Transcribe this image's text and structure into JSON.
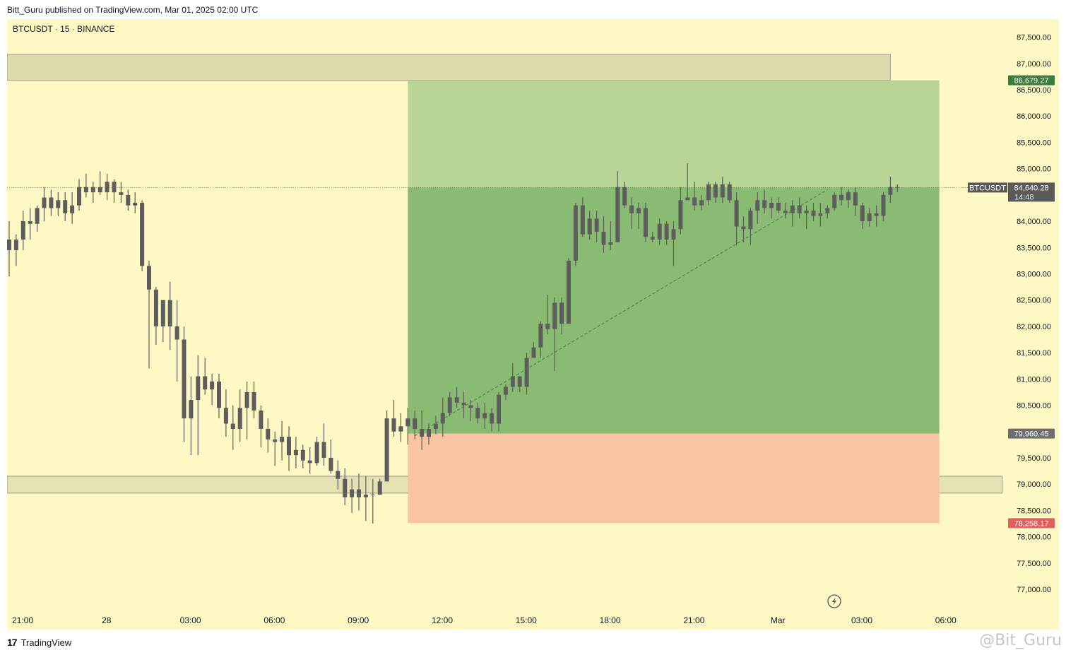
{
  "header": {
    "published_text": "Bitt_Guru published on TradingView.com, Mar 01, 2025 02:00 UTC"
  },
  "footer": {
    "brand_mark": "17",
    "brand_text": "TradingView",
    "watermark_text": "@Bit_Guru"
  },
  "colors": {
    "background": "#fef8c4",
    "candle": "#5d5d5d",
    "profit_zone": "#8abb72",
    "profit_zone_upper": "#b9d596",
    "loss_zone": "#f8c4a1",
    "supply_zone": "#ded9ad",
    "target_label": "#3a7d3c",
    "stop_label": "#e06060",
    "entry_label": "#6e6e6e",
    "current_label": "#5a5a5a"
  },
  "chart_data": {
    "type": "candlestick",
    "symbol_label": "BTCUSDT · 15 · BINANCE",
    "y_axis": {
      "ylim": [
        76700,
        88000
      ],
      "ticks": [
        87500,
        87000,
        86500,
        86000,
        85500,
        85000,
        84500,
        84000,
        83500,
        83000,
        82500,
        82000,
        81500,
        81000,
        80500,
        80000,
        79500,
        79000,
        78500,
        78000,
        77500,
        77000
      ],
      "tick_labels": [
        "87,500.00",
        "87,000.00",
        "86,500.00",
        "86,000.00",
        "85,500.00",
        "85,000.00",
        "84,500.00",
        "84,000.00",
        "83,500.00",
        "83,000.00",
        "82,500.00",
        "82,000.00",
        "81,500.00",
        "81,000.00",
        "80,500.00",
        "80,000.00",
        "79,500.00",
        "79,000.00",
        "78,500.00",
        "78,000.00",
        "77,500.00",
        "77,000.00"
      ]
    },
    "x_axis": {
      "tick_labels": [
        "21:00",
        "28",
        "03:00",
        "06:00",
        "09:00",
        "12:00",
        "15:00",
        "18:00",
        "21:00",
        "Mar",
        "03:00",
        "06:00"
      ],
      "tick_bars": [
        0,
        12,
        24,
        36,
        48,
        60,
        72,
        84,
        96,
        108,
        120,
        132
      ]
    },
    "position": {
      "entry_price": 79960.45,
      "target_price": 86679.27,
      "stop_price": 78258.17,
      "start_bar": 57,
      "end_bar": 133,
      "entry_label": "79,960.45",
      "target_label": "86,679.27",
      "stop_label": "78,258.17"
    },
    "current_price": {
      "symbol": "BTCUSDT",
      "value": 84640.28,
      "value_label": "84,640.28",
      "countdown": "14:48"
    },
    "zones": [
      {
        "name": "supply",
        "low": 86680,
        "high": 87170,
        "end_bar": 126
      },
      {
        "name": "demand",
        "low": 78830,
        "high": 79150,
        "end_bar": 142
      }
    ],
    "trendline": {
      "from": [
        58,
        79920
      ],
      "to": [
        117,
        84600
      ]
    },
    "candles": [
      [
        83650,
        84000,
        82950,
        83450
      ],
      [
        83450,
        83750,
        83150,
        83650
      ],
      [
        83650,
        84200,
        83450,
        84000
      ],
      [
        84000,
        84250,
        83650,
        83950
      ],
      [
        83950,
        84300,
        83800,
        84250
      ],
      [
        84250,
        84650,
        84000,
        84450
      ],
      [
        84450,
        84600,
        84100,
        84250
      ],
      [
        84250,
        84550,
        84100,
        84400
      ],
      [
        84400,
        84550,
        84000,
        84150
      ],
      [
        84150,
        84550,
        83950,
        84300
      ],
      [
        84300,
        84800,
        84200,
        84650
      ],
      [
        84650,
        84900,
        84450,
        84550
      ],
      [
        84550,
        84750,
        84350,
        84650
      ],
      [
        84650,
        84950,
        84500,
        84550
      ],
      [
        84550,
        84900,
        84400,
        84750
      ],
      [
        84750,
        84800,
        84350,
        84550
      ],
      [
        84550,
        84750,
        84350,
        84500
      ],
      [
        84500,
        84600,
        84200,
        84300
      ],
      [
        84300,
        84550,
        84150,
        84350
      ],
      [
        84350,
        84400,
        83050,
        83150
      ],
      [
        83150,
        83250,
        81200,
        82700
      ],
      [
        82700,
        82750,
        81650,
        82000
      ],
      [
        82000,
        82400,
        81700,
        82500
      ],
      [
        82500,
        82850,
        81550,
        82000
      ],
      [
        82000,
        82500,
        80950,
        81750
      ],
      [
        81750,
        82000,
        79800,
        80250
      ],
      [
        80250,
        81050,
        79550,
        80600
      ],
      [
        80600,
        81450,
        79550,
        81050
      ],
      [
        81050,
        81400,
        80700,
        80800
      ],
      [
        80800,
        81100,
        80500,
        80950
      ],
      [
        80950,
        81100,
        80250,
        80450
      ],
      [
        80450,
        80800,
        79900,
        80150
      ],
      [
        80150,
        80500,
        79650,
        80050
      ],
      [
        80050,
        80800,
        79800,
        80450
      ],
      [
        80450,
        80950,
        79850,
        80750
      ],
      [
        80750,
        80950,
        80250,
        80400
      ],
      [
        80400,
        80500,
        79700,
        80050
      ],
      [
        80050,
        80250,
        79600,
        79850
      ],
      [
        79850,
        80000,
        79350,
        79800
      ],
      [
        79800,
        80200,
        79450,
        79900
      ],
      [
        79900,
        80100,
        79250,
        79550
      ],
      [
        79550,
        79900,
        79300,
        79650
      ],
      [
        79650,
        79750,
        79300,
        79450
      ],
      [
        79450,
        79700,
        79200,
        79400
      ],
      [
        79400,
        79900,
        79350,
        79800
      ],
      [
        79800,
        80150,
        79350,
        79500
      ],
      [
        79500,
        79850,
        79200,
        79250
      ],
      [
        79250,
        79450,
        78900,
        79100
      ],
      [
        79100,
        79300,
        78600,
        78750
      ],
      [
        78750,
        79100,
        78450,
        78900
      ],
      [
        78900,
        79200,
        78500,
        78750
      ],
      [
        78750,
        79150,
        78300,
        78800
      ],
      [
        78800,
        79100,
        78250,
        78800
      ],
      [
        78800,
        79100,
        78900,
        79050
      ],
      [
        79050,
        80400,
        79100,
        80250
      ],
      [
        80250,
        80600,
        79900,
        80000
      ],
      [
        80000,
        80350,
        79800,
        80100
      ],
      [
        80100,
        80450,
        79750,
        80250
      ],
      [
        80250,
        80400,
        79850,
        80050
      ],
      [
        80050,
        80400,
        79650,
        79900
      ],
      [
        79900,
        80150,
        79750,
        80050
      ],
      [
        80050,
        80300,
        79950,
        80150
      ],
      [
        80150,
        80650,
        79900,
        80350
      ],
      [
        80350,
        80750,
        80300,
        80650
      ],
      [
        80650,
        80850,
        80450,
        80550
      ],
      [
        80550,
        80750,
        80250,
        80500
      ],
      [
        80500,
        80600,
        80200,
        80450
      ],
      [
        80450,
        80550,
        80150,
        80250
      ],
      [
        80250,
        80550,
        80050,
        80350
      ],
      [
        80350,
        80450,
        80000,
        80150
      ],
      [
        80150,
        80750,
        80000,
        80700
      ],
      [
        80700,
        80900,
        80600,
        80850
      ],
      [
        80850,
        81300,
        80750,
        81050
      ],
      [
        81050,
        81050,
        80750,
        80850
      ],
      [
        80850,
        81500,
        80700,
        81400
      ],
      [
        81400,
        81700,
        81400,
        81600
      ],
      [
        81600,
        82100,
        81400,
        82050
      ],
      [
        82050,
        82600,
        81850,
        81950
      ],
      [
        81950,
        82550,
        81150,
        82450
      ],
      [
        82450,
        82550,
        81850,
        82050
      ],
      [
        82050,
        83300,
        82050,
        83250
      ],
      [
        83250,
        84350,
        83150,
        84300
      ],
      [
        84300,
        84450,
        83700,
        83750
      ],
      [
        83750,
        84200,
        83650,
        84050
      ],
      [
        84050,
        84200,
        83600,
        83800
      ],
      [
        83800,
        84100,
        83400,
        83550
      ],
      [
        83550,
        84000,
        83450,
        83600
      ],
      [
        83600,
        84950,
        83600,
        84650
      ],
      [
        84650,
        84750,
        84250,
        84300
      ],
      [
        84300,
        84450,
        83850,
        84150
      ],
      [
        84150,
        84350,
        83850,
        84250
      ],
      [
        84250,
        84350,
        83600,
        83700
      ],
      [
        83700,
        83800,
        83600,
        83650
      ],
      [
        83650,
        84050,
        83550,
        83950
      ],
      [
        83950,
        84000,
        83550,
        83650
      ],
      [
        83650,
        84000,
        83150,
        83850
      ],
      [
        83850,
        84650,
        83750,
        84400
      ],
      [
        84400,
        85100,
        84400,
        84450
      ],
      [
        84450,
        84750,
        84200,
        84300
      ],
      [
        84300,
        84500,
        84200,
        84400
      ],
      [
        84400,
        84750,
        84300,
        84700
      ],
      [
        84700,
        84750,
        84350,
        84450
      ],
      [
        84450,
        84850,
        84350,
        84700
      ],
      [
        84700,
        84750,
        84350,
        84400
      ],
      [
        84400,
        84550,
        83550,
        83900
      ],
      [
        83900,
        84100,
        83600,
        83850
      ],
      [
        83850,
        84250,
        83550,
        84200
      ],
      [
        84200,
        84550,
        83950,
        84400
      ],
      [
        84400,
        84600,
        84150,
        84250
      ],
      [
        84250,
        84450,
        84050,
        84350
      ],
      [
        84350,
        84450,
        84150,
        84200
      ],
      [
        84200,
        84350,
        84050,
        84150
      ],
      [
        84150,
        84400,
        83900,
        84300
      ],
      [
        84300,
        84450,
        84050,
        84150
      ],
      [
        84150,
        84300,
        83850,
        84200
      ],
      [
        84200,
        84350,
        84000,
        84100
      ],
      [
        84100,
        84350,
        83900,
        84150
      ],
      [
        84150,
        84300,
        84050,
        84250
      ],
      [
        84250,
        84550,
        84200,
        84500
      ],
      [
        84500,
        84650,
        84300,
        84400
      ],
      [
        84400,
        84600,
        84250,
        84550
      ],
      [
        84550,
        84650,
        84100,
        84300
      ],
      [
        84300,
        84350,
        83850,
        84000
      ],
      [
        84000,
        84250,
        83900,
        84150
      ],
      [
        84150,
        84300,
        83900,
        84100
      ],
      [
        84100,
        84550,
        84000,
        84500
      ],
      [
        84500,
        84850,
        84350,
        84650
      ],
      [
        84650,
        84700,
        84550,
        84640
      ]
    ]
  }
}
